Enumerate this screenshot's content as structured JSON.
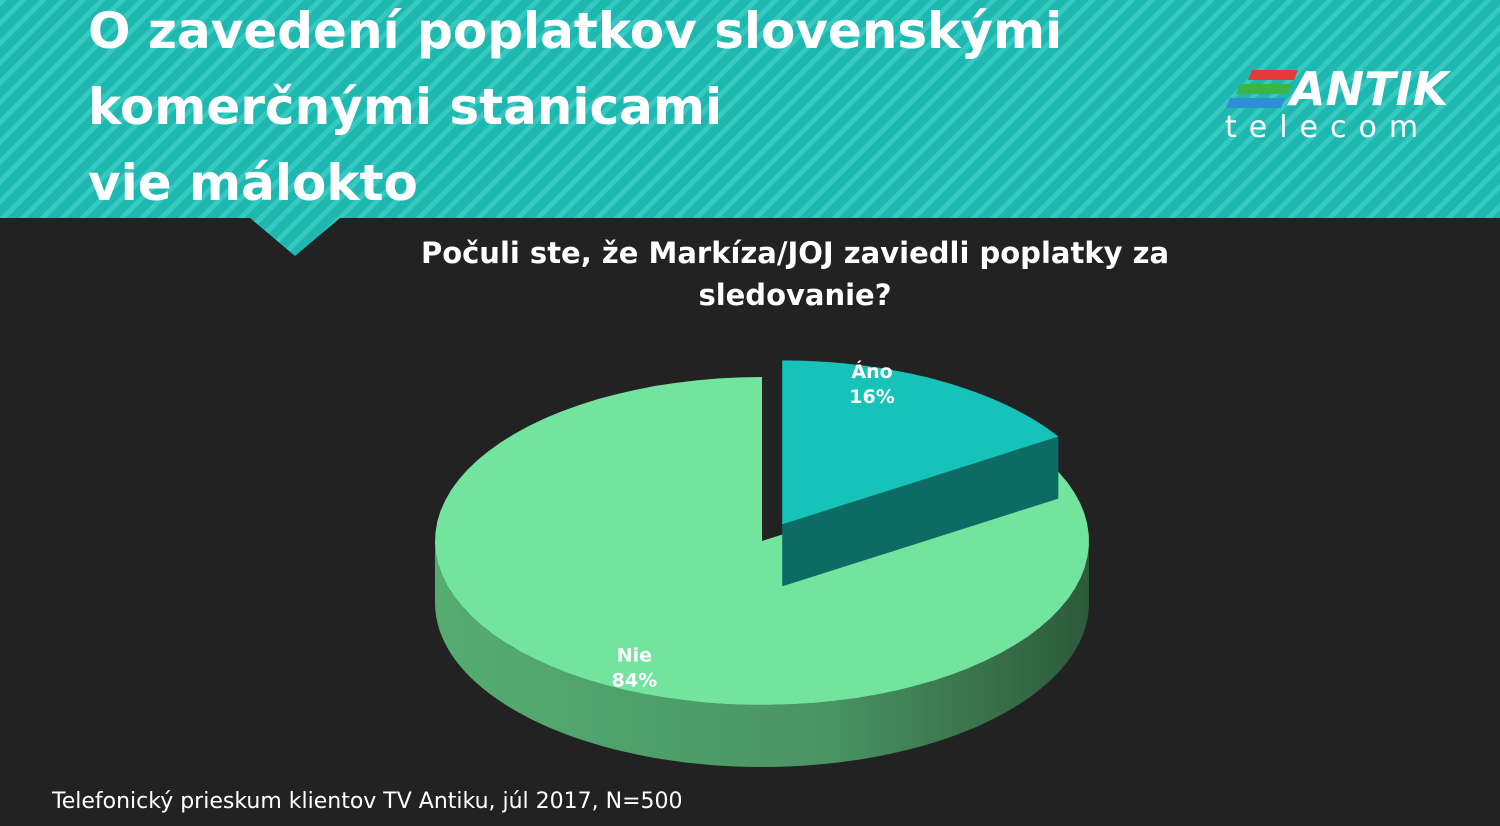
{
  "header": {
    "title_lines": [
      "O zavedení poplatkov slovenskými",
      "komerčnými stanicami",
      "vie málokto"
    ],
    "logo": {
      "brand": "ANTIK",
      "sub": "telecom"
    }
  },
  "chart_data": {
    "type": "pie",
    "title": "Počuli ste, že Markíza/JOJ zaviedli poplatky za sledovanie?",
    "categories": [
      "Áno",
      "Nie"
    ],
    "values": [
      16,
      84
    ],
    "value_labels": [
      "16%",
      "84%"
    ],
    "colors": [
      "#17c2b9",
      "#72e49d"
    ],
    "exploded": [
      true,
      false
    ],
    "three_d": true
  },
  "source": "Telefonický prieskum klientov TV Antiku, júl 2017, N=500"
}
